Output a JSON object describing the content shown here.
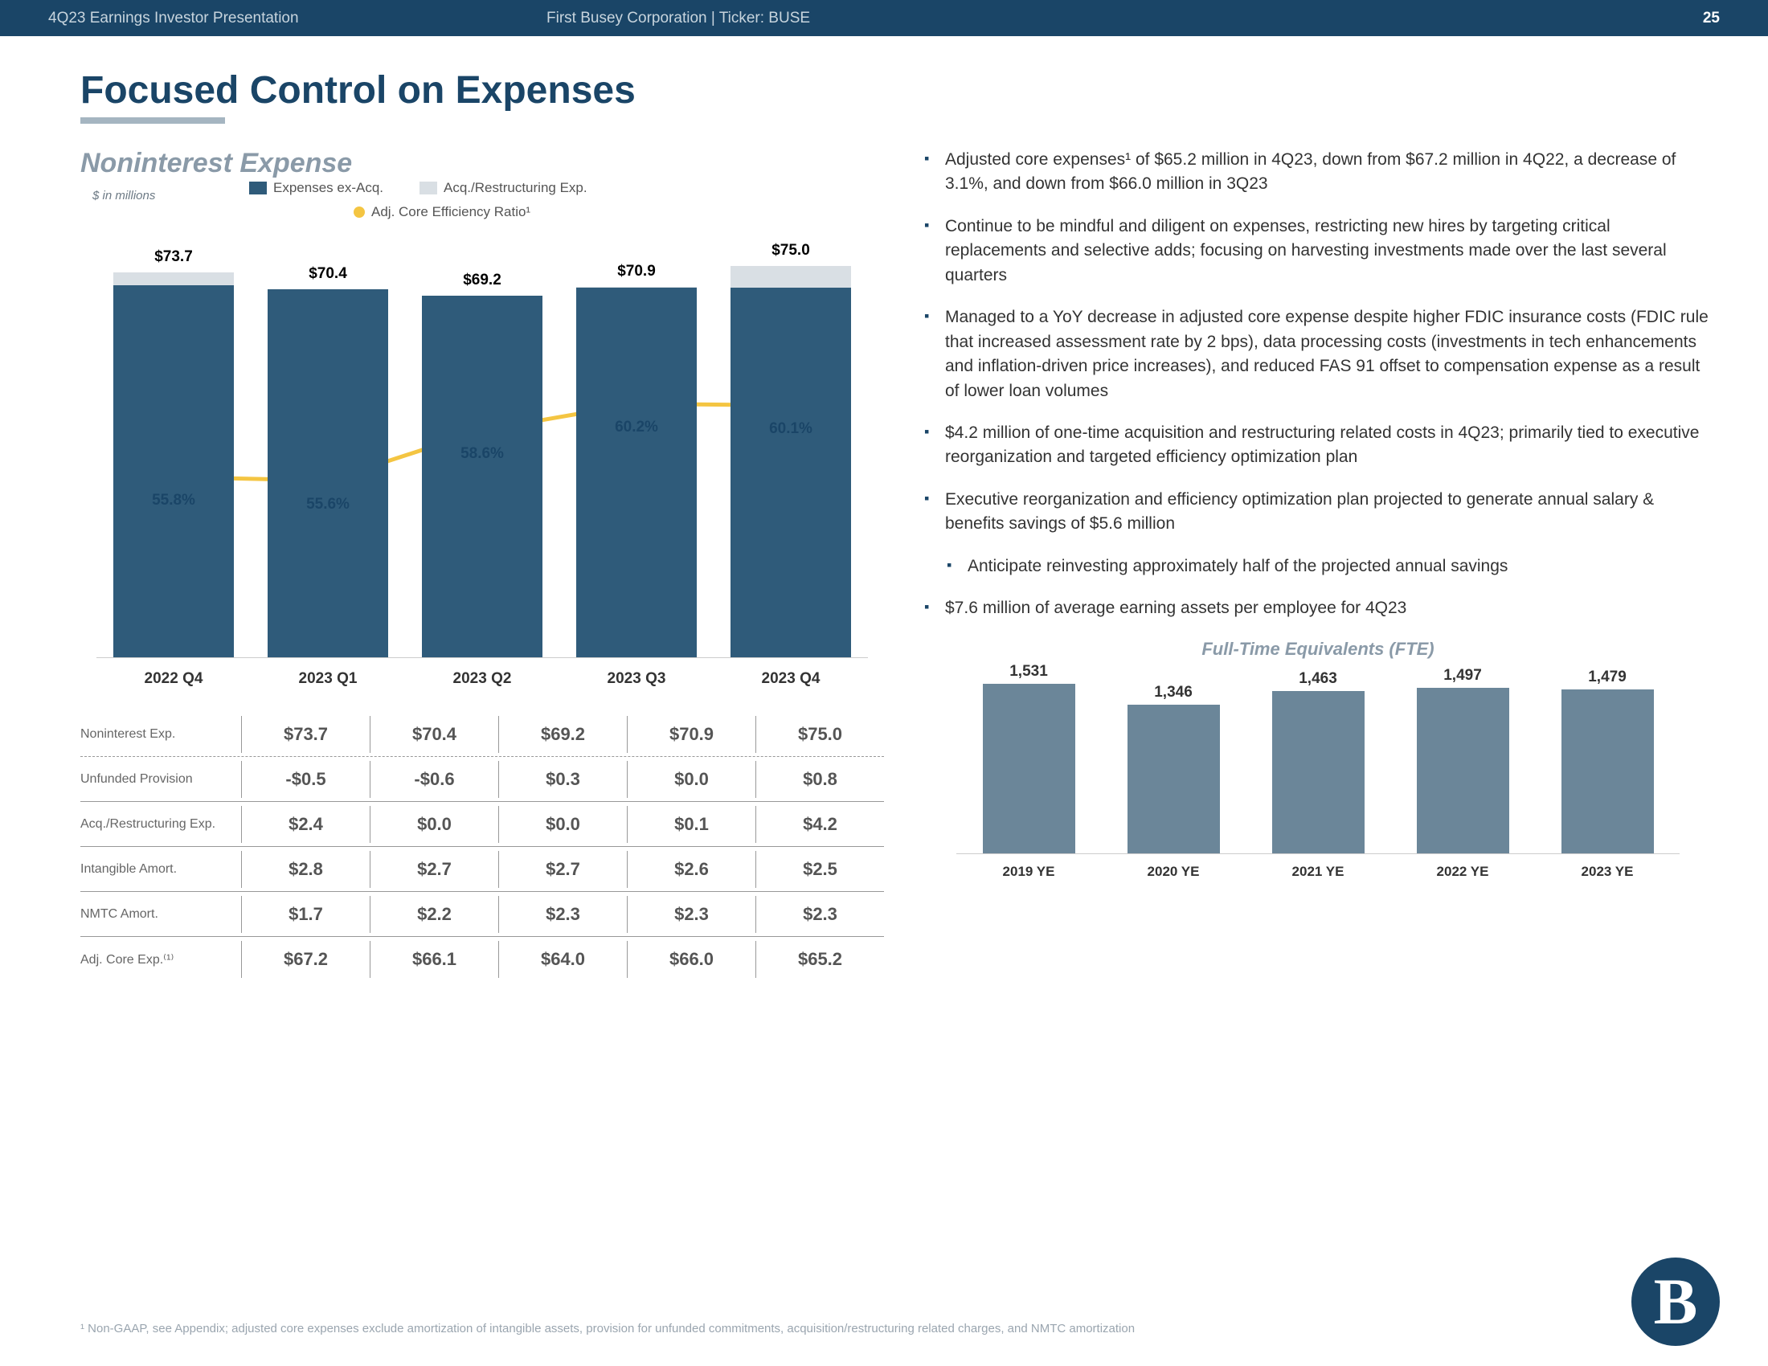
{
  "header": {
    "left": "4Q23 Earnings Investor Presentation",
    "center": "First Busey Corporation  |  Ticker: BUSE",
    "page_number": "25"
  },
  "page_title": "Focused Control on Expenses",
  "section_title": "Noninterest Expense",
  "in_millions": "$ in millions",
  "legend": {
    "expenses_ex_acq": "Expenses ex-Acq.",
    "acq_restructuring": "Acq./Restructuring Exp.",
    "adj_core_eff": "Adj. Core Efficiency Ratio¹"
  },
  "colors": {
    "bar_front": "#2f5b7a",
    "bar_back": "#d9dfe4",
    "line": "#f4c542",
    "fte_bar": "#6b8699",
    "header_bg": "#1a4567"
  },
  "bar_chart": {
    "ymax": 80,
    "categories": [
      "2022 Q4",
      "2023 Q1",
      "2023 Q2",
      "2023 Q3",
      "2023 Q4"
    ],
    "totals": [
      73.7,
      70.4,
      69.2,
      70.9,
      75.0
    ],
    "ex_acq": [
      71.3,
      70.4,
      69.2,
      70.8,
      70.8
    ],
    "ratios": [
      55.8,
      55.6,
      58.6,
      60.2,
      60.1
    ],
    "total_labels": [
      "$73.7",
      "$70.4",
      "$69.2",
      "$70.9",
      "$75.0"
    ],
    "ratio_labels": [
      "55.8%",
      "55.6%",
      "58.6%",
      "60.2%",
      "60.1%"
    ]
  },
  "table": {
    "rows": [
      {
        "label": "Noninterest Exp.",
        "values": [
          "$73.7",
          "$70.4",
          "$69.2",
          "$70.9",
          "$75.0"
        ],
        "dashed": true
      },
      {
        "label": "Unfunded Provision",
        "values": [
          "-$0.5",
          "-$0.6",
          "$0.3",
          "$0.0",
          "$0.8"
        ]
      },
      {
        "label": "Acq./Restructuring Exp.",
        "values": [
          "$2.4",
          "$0.0",
          "$0.0",
          "$0.1",
          "$4.2"
        ]
      },
      {
        "label": "Intangible Amort.",
        "values": [
          "$2.8",
          "$2.7",
          "$2.7",
          "$2.6",
          "$2.5"
        ]
      },
      {
        "label": "NMTC Amort.",
        "values": [
          "$1.7",
          "$2.2",
          "$2.3",
          "$2.3",
          "$2.3"
        ]
      },
      {
        "label": "Adj. Core Exp.⁽¹⁾",
        "values": [
          "$67.2",
          "$66.1",
          "$64.0",
          "$66.0",
          "$65.2"
        ],
        "no_border": true
      }
    ]
  },
  "bullets": [
    "Adjusted core expenses¹ of $65.2 million in 4Q23, down from $67.2 million in 4Q22, a decrease of 3.1%, and down from $66.0 million in 3Q23",
    "Continue to be mindful and diligent on expenses, restricting new hires by targeting critical replacements and selective adds; focusing on harvesting investments made over the last several quarters",
    "Managed to a YoY decrease in adjusted core expense despite higher FDIC insurance costs (FDIC rule that increased assessment rate by 2 bps), data processing costs (investments in tech enhancements and inflation-driven price increases), and reduced FAS 91 offset to compensation expense as a result of lower loan volumes",
    "$4.2 million of one-time acquisition and restructuring related costs in 4Q23; primarily tied to executive reorganization and targeted efficiency optimization plan",
    "Executive reorganization and efficiency optimization plan projected to generate annual salary & benefits savings of $5.6 million",
    "Anticipate reinvesting approximately half of the projected annual savings",
    "$7.6 million of average earning assets per employee for 4Q23"
  ],
  "bullet_sub_index": 5,
  "fte": {
    "title": "Full-Time Equivalents (FTE)",
    "categories": [
      "2019 YE",
      "2020 YE",
      "2021 YE",
      "2022 YE",
      "2023 YE"
    ],
    "values": [
      1531,
      1346,
      1463,
      1497,
      1479
    ],
    "labels": [
      "1,531",
      "1,346",
      "1,463",
      "1,497",
      "1,479"
    ],
    "ymax": 1600
  },
  "footnote": "¹ Non-GAAP, see Appendix; adjusted core expenses exclude amortization of intangible assets, provision for unfunded commitments, acquisition/restructuring related charges, and NMTC amortization",
  "logo_text": "B"
}
